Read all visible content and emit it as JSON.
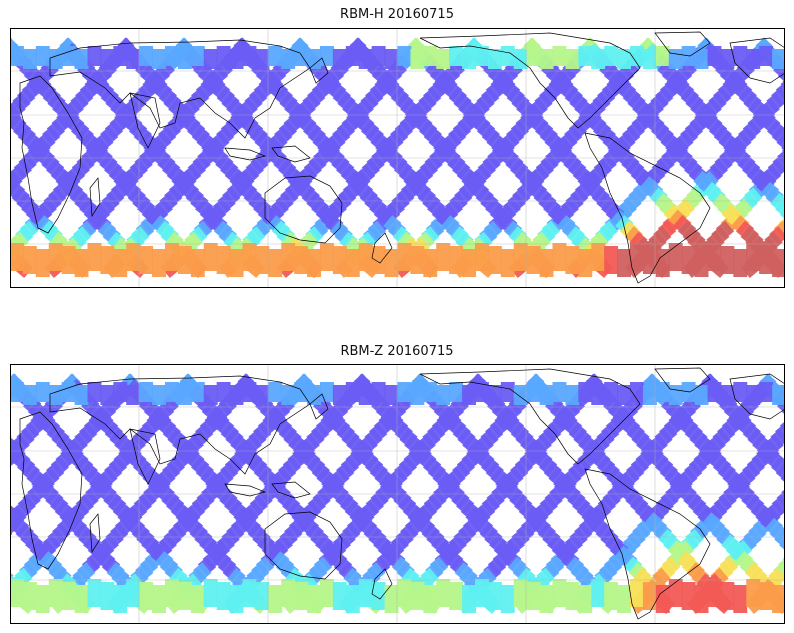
{
  "figure": {
    "panels": [
      {
        "id": "top",
        "title": "RBM-H 20160715",
        "polar_intensity": "high",
        "south_america_anomaly": "strong"
      },
      {
        "id": "bottom",
        "title": "RBM-Z 20160715",
        "polar_intensity": "moderate",
        "south_america_anomaly": "moderate"
      }
    ],
    "colormap": [
      "#6a5cf4",
      "#5aa8ff",
      "#5ff0f0",
      "#b6f58a",
      "#f8e05a",
      "#fb9c4a",
      "#f25a55",
      "#d06060"
    ],
    "coastline_color": "#000000",
    "gridline_color": "#b0b0b0",
    "projection": "equirectangular (Pacific-centered)",
    "grid": true,
    "track_pattern": "satellite ground-track swaths (crossing diagonals)"
  }
}
